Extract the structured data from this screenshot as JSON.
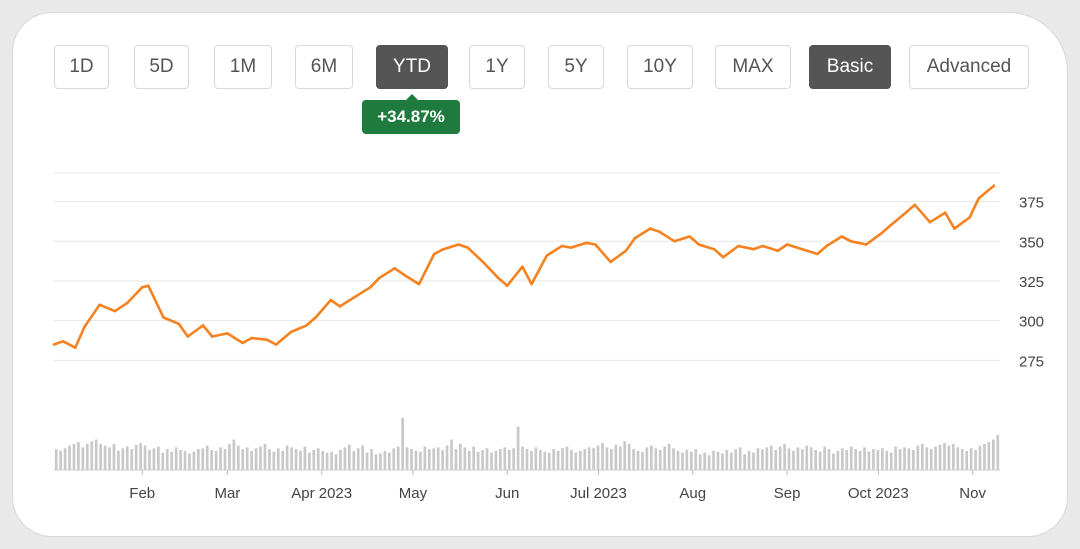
{
  "range_buttons": [
    "1D",
    "5D",
    "1M",
    "6M",
    "YTD",
    "1Y",
    "5Y",
    "10Y",
    "MAX"
  ],
  "selected_range": "YTD",
  "view_buttons": [
    "Basic",
    "Advanced"
  ],
  "selected_view": "Basic",
  "change_badge": "+34.87%",
  "colors": {
    "line": "#f58220",
    "volume": "#c8c8c8",
    "grid": "#e6e6e6",
    "badge": "#1f7a3e",
    "active_button": "#555555"
  },
  "chart_data": [
    {
      "type": "line",
      "x": [
        "2023-01-03",
        "2023-01-06",
        "2023-01-10",
        "2023-01-13",
        "2023-01-18",
        "2023-01-23",
        "2023-01-27",
        "2023-02-01",
        "2023-02-03",
        "2023-02-08",
        "2023-02-13",
        "2023-02-16",
        "2023-02-21",
        "2023-02-24",
        "2023-03-01",
        "2023-03-06",
        "2023-03-09",
        "2023-03-14",
        "2023-03-17",
        "2023-03-22",
        "2023-03-27",
        "2023-03-30",
        "2023-04-04",
        "2023-04-07",
        "2023-04-12",
        "2023-04-17",
        "2023-04-20",
        "2023-04-25",
        "2023-04-28",
        "2023-05-03",
        "2023-05-08",
        "2023-05-11",
        "2023-05-16",
        "2023-05-19",
        "2023-05-24",
        "2023-05-29",
        "2023-06-01",
        "2023-06-06",
        "2023-06-09",
        "2023-06-14",
        "2023-06-19",
        "2023-06-22",
        "2023-06-27",
        "2023-06-30",
        "2023-07-05",
        "2023-07-10",
        "2023-07-13",
        "2023-07-18",
        "2023-07-21",
        "2023-07-26",
        "2023-07-31",
        "2023-08-03",
        "2023-08-08",
        "2023-08-11",
        "2023-08-16",
        "2023-08-21",
        "2023-08-24",
        "2023-08-29",
        "2023-09-01",
        "2023-09-06",
        "2023-09-11",
        "2023-09-14",
        "2023-09-19",
        "2023-09-22",
        "2023-09-27",
        "2023-10-02",
        "2023-10-05",
        "2023-10-10",
        "2023-10-13",
        "2023-10-18",
        "2023-10-23",
        "2023-10-26",
        "2023-10-31",
        "2023-11-03",
        "2023-11-08"
      ],
      "y": [
        285,
        287,
        283,
        296,
        310,
        306,
        311,
        321,
        322,
        302,
        298,
        290,
        297,
        290,
        292,
        286,
        289,
        288,
        285,
        293,
        297,
        302,
        313,
        309,
        315,
        321,
        327,
        333,
        329,
        323,
        342,
        345,
        348,
        346,
        337,
        327,
        322,
        334,
        323,
        341,
        347,
        346,
        349,
        348,
        337,
        344,
        352,
        358,
        356,
        350,
        353,
        348,
        345,
        340,
        347,
        345,
        347,
        344,
        348,
        345,
        342,
        347,
        353,
        350,
        348,
        355,
        360,
        368,
        373,
        362,
        368,
        358,
        365,
        377,
        385
      ],
      "ylim": [
        262,
        393
      ],
      "yticks": [
        275,
        300,
        325,
        350,
        375
      ],
      "xtick_labels": [
        "Feb",
        "Mar",
        "Apr 2023",
        "May",
        "Jun",
        "Jul 2023",
        "Aug",
        "Sep",
        "Oct 2023",
        "Nov"
      ],
      "xtick_dates": [
        "2023-02-01",
        "2023-03-01",
        "2023-04-01",
        "2023-05-01",
        "2023-06-01",
        "2023-07-01",
        "2023-08-01",
        "2023-09-01",
        "2023-10-01",
        "2023-11-01"
      ],
      "grid": true,
      "legend": "none"
    },
    {
      "type": "bar",
      "name": "volume",
      "values": [
        24,
        22,
        25,
        28,
        30,
        32,
        26,
        30,
        33,
        35,
        30,
        28,
        26,
        30,
        22,
        25,
        27,
        24,
        29,
        31,
        28,
        23,
        25,
        27,
        20,
        24,
        21,
        26,
        23,
        22,
        19,
        21,
        24,
        25,
        28,
        23,
        22,
        26,
        24,
        30,
        35,
        28,
        24,
        26,
        22,
        25,
        27,
        30,
        24,
        21,
        25,
        22,
        28,
        26,
        24,
        22,
        27,
        20,
        23,
        25,
        22,
        20,
        21,
        18,
        23,
        26,
        29,
        22,
        25,
        28,
        20,
        24,
        18,
        19,
        22,
        20,
        25,
        27,
        60,
        26,
        24,
        22,
        21,
        27,
        24,
        25,
        26,
        23,
        28,
        35,
        24,
        30,
        26,
        22,
        27,
        21,
        23,
        25,
        20,
        22,
        24,
        26,
        23,
        25,
        50,
        27,
        24,
        22,
        26,
        23,
        21,
        20,
        24,
        22,
        25,
        27,
        23,
        20,
        22,
        24,
        26,
        25,
        28,
        31,
        26,
        24,
        29,
        27,
        33,
        30,
        24,
        22,
        21,
        26,
        28,
        25,
        23,
        27,
        30,
        25,
        22,
        20,
        23,
        21,
        24,
        18,
        20,
        17,
        22,
        21,
        19,
        23,
        20,
        24,
        26,
        18,
        22,
        20,
        25,
        24,
        26,
        28,
        23,
        27,
        30,
        25,
        22,
        26,
        24,
        28,
        26,
        23,
        21,
        27,
        24,
        19,
        22,
        25,
        23,
        27,
        24,
        22,
        26,
        21,
        24,
        23,
        25,
        22,
        20,
        27,
        24,
        26,
        25,
        23,
        28,
        30,
        26,
        24,
        27,
        29,
        31,
        28,
        30,
        26,
        24,
        22,
        25,
        23,
        28,
        30,
        32,
        35,
        40
      ],
      "ylim": [
        0,
        100
      ]
    }
  ]
}
